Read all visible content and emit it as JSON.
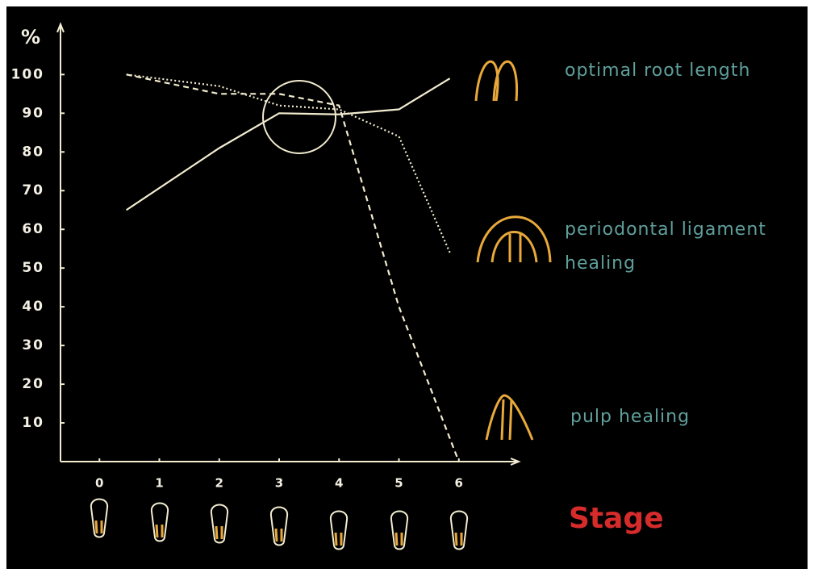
{
  "chart_data": {
    "type": "line",
    "y_label": "%",
    "x_label": "Stage",
    "xlim": [
      -0.65,
      7
    ],
    "ylim": [
      0,
      113
    ],
    "xticks": [
      0,
      1,
      2,
      3,
      4,
      5,
      6
    ],
    "yticks": [
      10,
      20,
      30,
      40,
      50,
      60,
      70,
      80,
      90,
      100
    ],
    "grid": false,
    "series": [
      {
        "name": "optimal root length",
        "color": "#f2ecd0",
        "line_style": "solid",
        "x": [
          0.45,
          2,
          3,
          4,
          5,
          5.85
        ],
        "values": [
          65,
          81,
          90,
          89.7,
          91,
          99
        ]
      },
      {
        "name": "periodontal ligament healing",
        "color": "#f2ecd0",
        "line_style": "dotted",
        "x": [
          0.45,
          2,
          3,
          4,
          5,
          5.85
        ],
        "values": [
          100,
          97,
          92,
          91,
          84,
          54
        ]
      },
      {
        "name": "pulp healing",
        "color": "#f2ecd0",
        "line_style": "dashed",
        "x": [
          0.45,
          2,
          3,
          4,
          5,
          6
        ],
        "values": [
          100,
          95,
          95,
          92,
          40,
          0
        ]
      }
    ]
  }
}
